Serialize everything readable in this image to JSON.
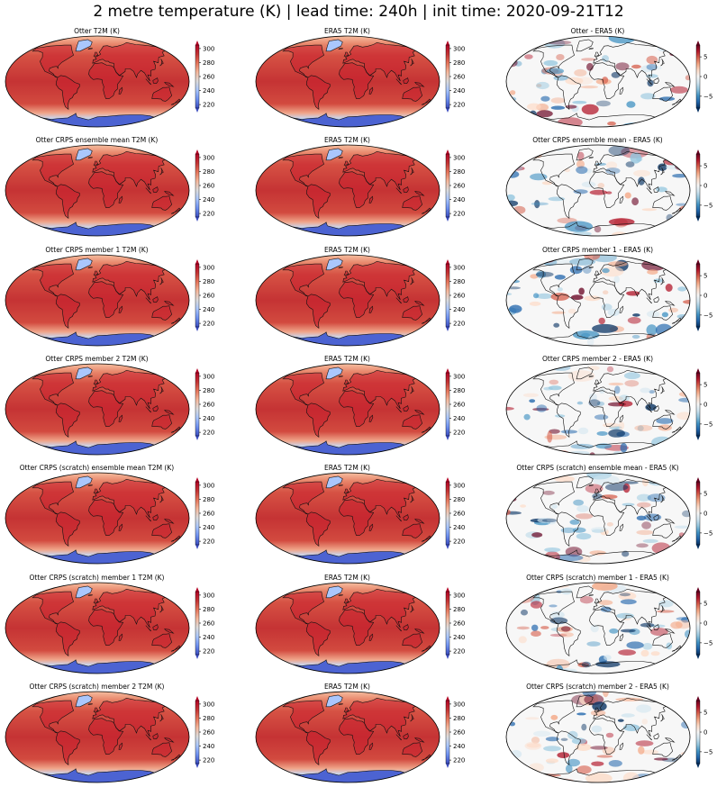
{
  "suptitle": "2 metre temperature (K) | lead time: 240h | init time: 2020-09-21T12",
  "colors": {
    "temp_cmap": [
      "#3b4cc0",
      "#6f92f3",
      "#aac7fd",
      "#dddcdc",
      "#f7b89c",
      "#e7755b",
      "#c53334",
      "#b40426"
    ],
    "diff_cmap": [
      "#053061",
      "#2166ac",
      "#4393c3",
      "#92c5de",
      "#d1e5f0",
      "#f7f7f7",
      "#fddbc7",
      "#f4a582",
      "#d6604d",
      "#b2182b",
      "#67001f"
    ]
  },
  "chart_data": [
    {
      "type": "heatmap",
      "title": "Otter T2M (K)",
      "kind": "temp",
      "colorbar": {
        "ticks": [
          220,
          240,
          260,
          280,
          300
        ],
        "range": [
          215,
          305
        ]
      }
    },
    {
      "type": "heatmap",
      "title": "ERA5 T2M (K)",
      "kind": "temp",
      "colorbar": {
        "ticks": [
          220,
          240,
          260,
          280,
          300
        ],
        "range": [
          215,
          305
        ]
      }
    },
    {
      "type": "heatmap",
      "title": "Otter - ERA5 (K)",
      "kind": "diff",
      "colorbar": {
        "ticks": [
          5,
          0,
          -5
        ],
        "tick_labels": [
          "5",
          "0",
          "−5"
        ],
        "range": [
          -8,
          8
        ]
      }
    },
    {
      "type": "heatmap",
      "title": "Otter CRPS ensemble mean T2M (K)",
      "kind": "temp",
      "colorbar": {
        "ticks": [
          220,
          240,
          260,
          280,
          300
        ],
        "range": [
          215,
          305
        ]
      }
    },
    {
      "type": "heatmap",
      "title": "ERA5 T2M (K)",
      "kind": "temp",
      "colorbar": {
        "ticks": [
          220,
          240,
          260,
          280,
          300
        ],
        "range": [
          215,
          305
        ]
      }
    },
    {
      "type": "heatmap",
      "title": "Otter CRPS ensemble mean - ERA5 (K)",
      "kind": "diff",
      "colorbar": {
        "ticks": [
          5,
          0,
          -5
        ],
        "tick_labels": [
          "5",
          "0",
          "−5"
        ],
        "range": [
          -8,
          8
        ]
      }
    },
    {
      "type": "heatmap",
      "title": "Otter CRPS member 1 T2M (K)",
      "kind": "temp",
      "colorbar": {
        "ticks": [
          220,
          240,
          260,
          280,
          300
        ],
        "range": [
          215,
          305
        ]
      }
    },
    {
      "type": "heatmap",
      "title": "ERA5 T2M (K)",
      "kind": "temp",
      "colorbar": {
        "ticks": [
          220,
          240,
          260,
          280,
          300
        ],
        "range": [
          215,
          305
        ]
      }
    },
    {
      "type": "heatmap",
      "title": "Otter CRPS member 1 - ERA5 (K)",
      "kind": "diff",
      "colorbar": {
        "ticks": [
          5,
          0,
          -5
        ],
        "tick_labels": [
          "5",
          "0",
          "−5"
        ],
        "range": [
          -8,
          8
        ]
      }
    },
    {
      "type": "heatmap",
      "title": "Otter CRPS member 2 T2M (K)",
      "kind": "temp",
      "colorbar": {
        "ticks": [
          220,
          240,
          260,
          280,
          300
        ],
        "range": [
          215,
          305
        ]
      }
    },
    {
      "type": "heatmap",
      "title": "ERA5 T2M (K)",
      "kind": "temp",
      "colorbar": {
        "ticks": [
          220,
          240,
          260,
          280,
          300
        ],
        "range": [
          215,
          305
        ]
      }
    },
    {
      "type": "heatmap",
      "title": "Otter CRPS member 2 - ERA5 (K)",
      "kind": "diff",
      "colorbar": {
        "ticks": [
          5,
          0,
          -5
        ],
        "tick_labels": [
          "5",
          "0",
          "−5"
        ],
        "range": [
          -8,
          8
        ]
      }
    },
    {
      "type": "heatmap",
      "title": "Otter CRPS (scratch) ensemble mean T2M (K)",
      "kind": "temp",
      "colorbar": {
        "ticks": [
          220,
          240,
          260,
          280,
          300
        ],
        "range": [
          215,
          305
        ]
      }
    },
    {
      "type": "heatmap",
      "title": "ERA5 T2M (K)",
      "kind": "temp",
      "colorbar": {
        "ticks": [
          220,
          240,
          260,
          280,
          300
        ],
        "range": [
          215,
          305
        ]
      }
    },
    {
      "type": "heatmap",
      "title": "Otter CRPS (scratch) ensemble mean - ERA5 (K)",
      "kind": "diff",
      "colorbar": {
        "ticks": [
          5,
          0,
          -5
        ],
        "tick_labels": [
          "5",
          "0",
          "−5"
        ],
        "range": [
          -8,
          8
        ]
      }
    },
    {
      "type": "heatmap",
      "title": "Otter CRPS (scratch) member 1 T2M (K)",
      "kind": "temp",
      "colorbar": {
        "ticks": [
          220,
          240,
          260,
          280,
          300
        ],
        "range": [
          215,
          305
        ]
      }
    },
    {
      "type": "heatmap",
      "title": "ERA5 T2M (K)",
      "kind": "temp",
      "colorbar": {
        "ticks": [
          220,
          240,
          260,
          280,
          300
        ],
        "range": [
          215,
          305
        ]
      }
    },
    {
      "type": "heatmap",
      "title": "Otter CRPS (scratch) member 1 - ERA5 (K)",
      "kind": "diff",
      "colorbar": {
        "ticks": [
          5,
          0,
          -5
        ],
        "tick_labels": [
          "5",
          "0",
          "−5"
        ],
        "range": [
          -8,
          8
        ]
      }
    },
    {
      "type": "heatmap",
      "title": "Otter CRPS (scratch) member 2 T2M (K)",
      "kind": "temp",
      "colorbar": {
        "ticks": [
          220,
          240,
          260,
          280,
          300
        ],
        "range": [
          215,
          305
        ]
      }
    },
    {
      "type": "heatmap",
      "title": "ERA5 T2M (K)",
      "kind": "temp",
      "colorbar": {
        "ticks": [
          220,
          240,
          260,
          280,
          300
        ],
        "range": [
          215,
          305
        ]
      }
    },
    {
      "type": "heatmap",
      "title": "Otter CRPS (scratch) member 2 - ERA5 (K)",
      "kind": "diff",
      "colorbar": {
        "ticks": [
          5,
          0,
          -5
        ],
        "tick_labels": [
          "5",
          "0",
          "−5"
        ],
        "range": [
          -8,
          8
        ]
      }
    }
  ]
}
